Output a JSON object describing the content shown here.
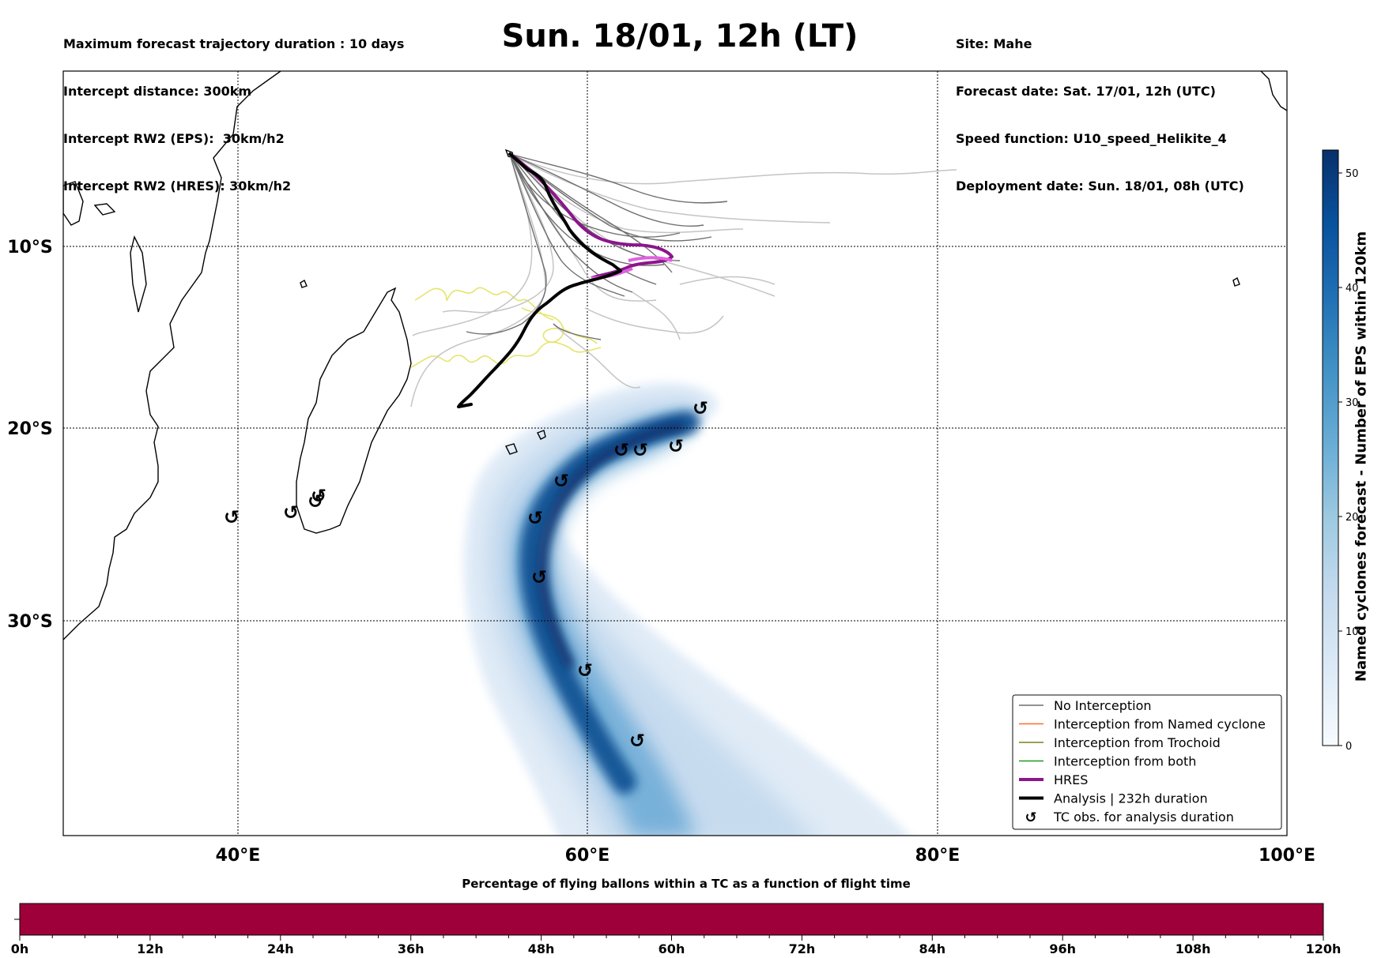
{
  "header": {
    "left_lines": [
      "Maximum forecast trajectory duration : 10 days",
      "Intercept distance: 300km",
      "Intercept RW2 (EPS):  30km/h2",
      "Intercept RW2 (HRES): 30km/h2"
    ],
    "title": "Sun. 18/01, 12h (LT)",
    "right_lines": [
      "Site: Mahe",
      "Forecast date: Sat. 17/01, 12h (UTC)",
      "Speed function: U10_speed_Helikite_4",
      "Deployment date: Sun. 18/01, 08h (UTC)"
    ]
  },
  "map": {
    "lon_labels": [
      "40°E",
      "60°E",
      "80°E",
      "100°E"
    ],
    "lat_labels": [
      "10°S",
      "20°S",
      "30°S"
    ]
  },
  "legend": {
    "items": [
      {
        "label": "No Interception",
        "color": "#6e6e6e",
        "kind": "thin"
      },
      {
        "label": "Interception from Named cyclone",
        "color": "#ff6a2e",
        "kind": "thin"
      },
      {
        "label": "Interception from Trochoid",
        "color": "#7f7f1a",
        "kind": "thin"
      },
      {
        "label": "Interception from both",
        "color": "#1a9a1a",
        "kind": "thin"
      },
      {
        "label": "HRES",
        "color": "#8b168b",
        "kind": "thick"
      },
      {
        "label": "Analysis | 232h duration",
        "color": "#000000",
        "kind": "thick"
      },
      {
        "label": "TC obs. for analysis duration",
        "color": "#000000",
        "kind": "marker"
      }
    ]
  },
  "tc_marker_glyph": "↺",
  "colorbar": {
    "label": "Named cyclones forecast - Number of EPS within 120km",
    "ticks": [
      "0",
      "10",
      "20",
      "30",
      "40",
      "50"
    ],
    "tick_values": [
      0,
      10,
      20,
      30,
      40,
      50
    ],
    "max_value": 52,
    "colors": [
      "#f7fbff",
      "#deebf7",
      "#c6dbef",
      "#9ecae1",
      "#6baed6",
      "#4292c6",
      "#2171b5",
      "#08519c",
      "#08306b"
    ]
  },
  "percentage_bar": {
    "title": "Percentage of flying ballons within a TC as a function of flight time",
    "bar_color": "#9e0039",
    "ticks": [
      "0h",
      "12h",
      "24h",
      "36h",
      "48h",
      "60h",
      "72h",
      "84h",
      "96h",
      "108h",
      "120h"
    ]
  }
}
